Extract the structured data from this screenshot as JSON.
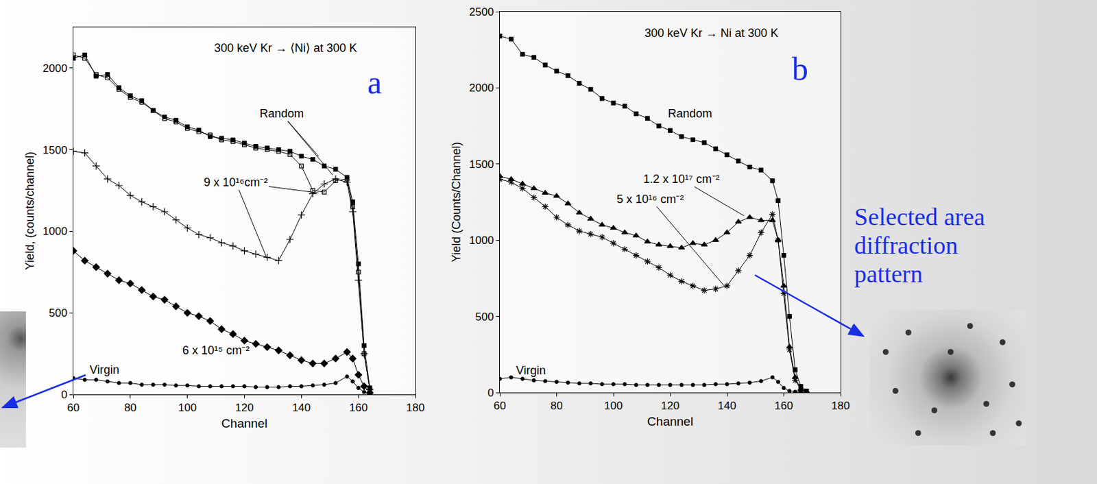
{
  "chart_data": [
    {
      "type": "line",
      "panel": "a",
      "title": "300 keV Kr → ⟨Ni⟩ at 300 K",
      "x_label": "Channel",
      "y_label": "Yield, (counts/channel)",
      "xlim": [
        60,
        180
      ],
      "xticks": [
        60,
        80,
        100,
        120,
        140,
        160,
        180
      ],
      "ylim": [
        0,
        2250
      ],
      "yticks": [
        0,
        500,
        1000,
        1500,
        2000
      ],
      "grid": false,
      "series": [
        {
          "name": "Random",
          "color": "#000000",
          "marker": "square",
          "x": [
            60,
            64,
            68,
            72,
            76,
            80,
            84,
            88,
            92,
            96,
            100,
            104,
            108,
            112,
            116,
            120,
            124,
            128,
            132,
            136,
            140,
            144,
            148,
            152,
            156,
            158,
            160,
            162,
            164
          ],
          "values": [
            2060,
            2080,
            1950,
            1960,
            1880,
            1830,
            1800,
            1740,
            1700,
            1680,
            1640,
            1620,
            1580,
            1570,
            1560,
            1540,
            1520,
            1510,
            1500,
            1490,
            1460,
            1440,
            1400,
            1380,
            1330,
            1180,
            800,
            300,
            40
          ]
        },
        {
          "name": "Random",
          "color": "#000000",
          "marker": "open square",
          "x": [
            60,
            64,
            68,
            72,
            76,
            80,
            84,
            88,
            92,
            96,
            100,
            104,
            108,
            112,
            116,
            120,
            124,
            128,
            132,
            136,
            140,
            144,
            148,
            152,
            156,
            158,
            160,
            162,
            164
          ],
          "values": [
            2080,
            2060,
            1960,
            1940,
            1870,
            1820,
            1790,
            1740,
            1690,
            1670,
            1630,
            1610,
            1590,
            1560,
            1550,
            1530,
            1510,
            1500,
            1490,
            1470,
            1400,
            1250,
            1240,
            1310,
            1320,
            1150,
            750,
            250,
            30
          ]
        },
        {
          "name": "9 x 10¹⁶cm⁻²",
          "color": "#000000",
          "marker": "plus",
          "x": [
            60,
            64,
            68,
            72,
            76,
            80,
            84,
            88,
            92,
            96,
            100,
            104,
            108,
            112,
            116,
            120,
            124,
            128,
            132,
            136,
            140,
            144,
            148,
            152,
            156,
            158,
            160,
            162,
            164
          ],
          "values": [
            1490,
            1480,
            1400,
            1320,
            1280,
            1220,
            1180,
            1150,
            1120,
            1070,
            1020,
            980,
            960,
            930,
            910,
            880,
            860,
            840,
            820,
            950,
            1100,
            1230,
            1290,
            1320,
            1300,
            1120,
            700,
            250,
            30
          ]
        },
        {
          "name": "6 x 10¹⁵ cm⁻²",
          "color": "#000000",
          "marker": "diamond",
          "x": [
            60,
            64,
            68,
            72,
            76,
            80,
            84,
            88,
            92,
            96,
            100,
            104,
            108,
            112,
            116,
            120,
            124,
            128,
            132,
            136,
            140,
            144,
            148,
            152,
            156,
            158,
            160,
            162,
            164
          ],
          "values": [
            880,
            820,
            780,
            740,
            700,
            680,
            640,
            600,
            580,
            540,
            500,
            480,
            450,
            400,
            370,
            330,
            310,
            290,
            270,
            240,
            210,
            190,
            190,
            220,
            260,
            220,
            120,
            50,
            10
          ]
        },
        {
          "name": "Virgin",
          "color": "#000000",
          "marker": "circle",
          "x": [
            60,
            64,
            68,
            72,
            76,
            80,
            84,
            88,
            92,
            96,
            100,
            104,
            108,
            112,
            116,
            120,
            124,
            128,
            132,
            136,
            140,
            144,
            148,
            152,
            156,
            158,
            160,
            162,
            164
          ],
          "values": [
            100,
            90,
            90,
            80,
            70,
            70,
            60,
            60,
            60,
            55,
            55,
            50,
            50,
            50,
            50,
            50,
            45,
            45,
            45,
            50,
            50,
            55,
            60,
            70,
            110,
            80,
            40,
            15,
            5
          ]
        }
      ],
      "annotations": [
        {
          "text": "Random",
          "x": 133,
          "y": 1720,
          "points": [
            [
              146,
              1460
            ],
            [
              151,
              1345
            ]
          ]
        },
        {
          "text": "9 x 10¹⁶cm⁻²",
          "x": 117,
          "y": 1300,
          "points": [
            [
              146,
              1235
            ],
            [
              128,
              830
            ]
          ]
        },
        {
          "text": "6 x 10¹⁵ cm⁻²",
          "x": 110,
          "y": 270,
          "points": []
        },
        {
          "text": "Virgin",
          "x": 71,
          "y": 150,
          "points": []
        }
      ]
    },
    {
      "type": "line",
      "panel": "b",
      "title": "300 keV Kr → Ni at 300 K",
      "x_label": "Channel",
      "y_label": "Yield (Counts/Channel)",
      "xlim": [
        60,
        180
      ],
      "xticks": [
        60,
        80,
        100,
        120,
        140,
        160,
        180
      ],
      "ylim": [
        0,
        2500
      ],
      "yticks": [
        0,
        500,
        1000,
        1500,
        2000,
        2500
      ],
      "grid": false,
      "series": [
        {
          "name": "Random",
          "color": "#000000",
          "marker": "square",
          "x": [
            60,
            64,
            68,
            72,
            76,
            80,
            84,
            88,
            92,
            96,
            100,
            104,
            108,
            112,
            116,
            120,
            124,
            128,
            132,
            136,
            140,
            144,
            148,
            152,
            156,
            158,
            160,
            162,
            164,
            166,
            168
          ],
          "values": [
            2340,
            2320,
            2220,
            2200,
            2150,
            2110,
            2080,
            2030,
            1990,
            1930,
            1900,
            1880,
            1830,
            1800,
            1750,
            1720,
            1680,
            1660,
            1640,
            1600,
            1560,
            1520,
            1480,
            1460,
            1390,
            1260,
            900,
            500,
            150,
            40,
            10
          ]
        },
        {
          "name": "1.2 x 10¹⁷ cm⁻²",
          "color": "#000000",
          "marker": "triangle",
          "x": [
            60,
            64,
            68,
            72,
            76,
            80,
            84,
            88,
            92,
            96,
            100,
            104,
            108,
            112,
            116,
            120,
            124,
            128,
            132,
            136,
            140,
            144,
            148,
            152,
            156,
            158,
            160,
            162,
            164,
            166,
            168
          ],
          "values": [
            1420,
            1400,
            1370,
            1340,
            1310,
            1290,
            1240,
            1180,
            1140,
            1100,
            1080,
            1050,
            1030,
            990,
            970,
            960,
            950,
            980,
            970,
            1000,
            1050,
            1120,
            1150,
            1130,
            1130,
            1000,
            700,
            300,
            100,
            20,
            5
          ]
        },
        {
          "name": "5 x 10¹⁶ cm⁻²",
          "color": "#000000",
          "marker": "asterisk",
          "x": [
            60,
            64,
            68,
            72,
            76,
            80,
            84,
            88,
            92,
            96,
            100,
            104,
            108,
            112,
            116,
            120,
            124,
            128,
            132,
            136,
            140,
            144,
            148,
            152,
            156,
            158,
            160,
            162,
            164,
            166,
            168
          ],
          "values": [
            1400,
            1380,
            1340,
            1280,
            1220,
            1150,
            1100,
            1060,
            1040,
            1020,
            980,
            940,
            900,
            860,
            820,
            770,
            730,
            700,
            670,
            680,
            700,
            800,
            900,
            1050,
            1170,
            1000,
            650,
            280,
            80,
            20,
            5
          ]
        },
        {
          "name": "Virgin",
          "color": "#000000",
          "marker": "circle",
          "x": [
            60,
            64,
            68,
            72,
            76,
            80,
            84,
            88,
            92,
            96,
            100,
            104,
            108,
            112,
            116,
            120,
            124,
            128,
            132,
            136,
            140,
            144,
            148,
            152,
            156,
            158,
            160,
            162,
            164,
            166,
            168
          ],
          "values": [
            90,
            100,
            90,
            80,
            75,
            70,
            65,
            60,
            60,
            55,
            55,
            55,
            50,
            50,
            50,
            50,
            50,
            50,
            50,
            55,
            55,
            60,
            65,
            75,
            100,
            70,
            30,
            10,
            5,
            2,
            1
          ]
        }
      ],
      "annotations": [
        {
          "text": "Random",
          "x": 127,
          "y": 1830,
          "points": []
        },
        {
          "text": "1.2 x 10¹⁷ cm⁻²",
          "x": 124,
          "y": 1400,
          "points": [
            [
              146,
              1160
            ]
          ]
        },
        {
          "text": "5 x 10¹⁶ cm⁻²",
          "x": 113,
          "y": 1270,
          "points": [
            [
              139,
              700
            ]
          ]
        },
        {
          "text": "Virgin",
          "x": 71,
          "y": 145,
          "points": []
        }
      ]
    }
  ],
  "callout": {
    "text": "Selected area diffraction pattern"
  }
}
